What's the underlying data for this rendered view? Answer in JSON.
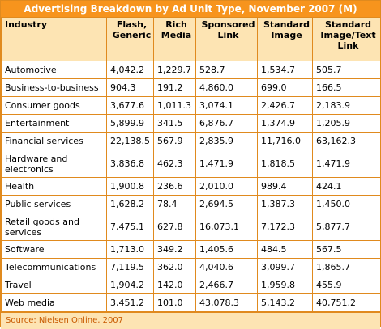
{
  "title": "Advertising Breakdown by Ad Unit Type, November 2007 (M)",
  "headers": {
    "industry": "Industry",
    "flash": "Flash, Generic",
    "rich": "Rich Media",
    "sponsored": "Sponsored Link",
    "standard_image": "Standard Image",
    "standard_image_text": "Standard Image/Text Link"
  },
  "rows": [
    {
      "industry": "Automotive",
      "flash": "4,042.2",
      "rich": "1,229.7",
      "sponsored": "528.7",
      "standard_image": "1,534.7",
      "standard_image_text": "505.7"
    },
    {
      "industry": "Business-to-business",
      "flash": "904.3",
      "rich": "191.2",
      "sponsored": "4,860.0",
      "standard_image": "699.0",
      "standard_image_text": "166.5"
    },
    {
      "industry": "Consumer goods",
      "flash": "3,677.6",
      "rich": "1,011.3",
      "sponsored": "3,074.1",
      "standard_image": "2,426.7",
      "standard_image_text": "2,183.9"
    },
    {
      "industry": "Entertainment",
      "flash": "5,899.9",
      "rich": "341.5",
      "sponsored": "6,876.7",
      "standard_image": "1,374.9",
      "standard_image_text": "1,205.9"
    },
    {
      "industry": "Financial services",
      "flash": "22,138.5",
      "rich": "567.9",
      "sponsored": "2,835.9",
      "standard_image": "11,716.0",
      "standard_image_text": "63,162.3"
    },
    {
      "industry": "Hardware and electronics",
      "flash": "3,836.8",
      "rich": "462.3",
      "sponsored": "1,471.9",
      "standard_image": "1,818.5",
      "standard_image_text": "1,471.9"
    },
    {
      "industry": "Health",
      "flash": "1,900.8",
      "rich": "236.6",
      "sponsored": "2,010.0",
      "standard_image": "989.4",
      "standard_image_text": "424.1"
    },
    {
      "industry": "Public services",
      "flash": "1,628.2",
      "rich": "78.4",
      "sponsored": "2,694.5",
      "standard_image": "1,387.3",
      "standard_image_text": "1,450.0"
    },
    {
      "industry": "Retail goods and services",
      "flash": "7,475.1",
      "rich": "627.8",
      "sponsored": "16,073.1",
      "standard_image": "7,172.3",
      "standard_image_text": "5,877.7"
    },
    {
      "industry": "Software",
      "flash": "1,713.0",
      "rich": "349.2",
      "sponsored": "1,405.6",
      "standard_image": "484.5",
      "standard_image_text": "567.5"
    },
    {
      "industry": "Telecommunications",
      "flash": "7,119.5",
      "rich": "362.0",
      "sponsored": "4,040.6",
      "standard_image": "3,099.7",
      "standard_image_text": "1,865.7"
    },
    {
      "industry": "Travel",
      "flash": "1,904.2",
      "rich": "142.0",
      "sponsored": "2,466.7",
      "standard_image": "1,959.8",
      "standard_image_text": "455.9"
    },
    {
      "industry": "Web media",
      "flash": "3,451.2",
      "rich": "101.0",
      "sponsored": "43,078.3",
      "standard_image": "5,143.2",
      "standard_image_text": "40,751.2"
    }
  ],
  "source": "Source: Nielsen Online, 2007",
  "colors": {
    "title_bg": "#f7941d",
    "header_bg": "#fde4b3",
    "border": "#e08a1e",
    "source_text": "#c85a00"
  }
}
